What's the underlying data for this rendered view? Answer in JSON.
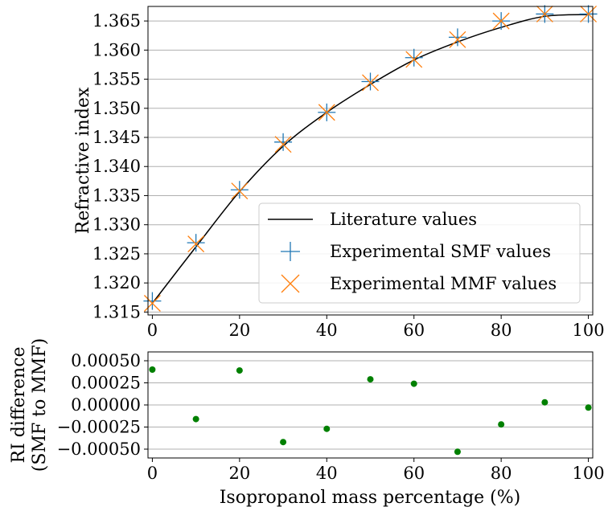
{
  "chart_data": [
    {
      "type": "line",
      "ylabel": "Refractive index",
      "xlim": [
        -1,
        101
      ],
      "ylim": [
        1.3145,
        1.3675
      ],
      "xticks": [
        "0",
        "20",
        "40",
        "60",
        "80",
        "100"
      ],
      "yticks": [
        "1.315",
        "1.320",
        "1.325",
        "1.330",
        "1.335",
        "1.340",
        "1.345",
        "1.350",
        "1.355",
        "1.360",
        "1.365"
      ],
      "grid": "horizontal",
      "legend_position": "lower right",
      "series": [
        {
          "name": "Literature values",
          "style": "line",
          "color": "#000000",
          "x": [
            0,
            10,
            20,
            30,
            40,
            50,
            60,
            70,
            80,
            90,
            100
          ],
          "y": [
            1.3165,
            1.3262,
            1.3357,
            1.3435,
            1.3493,
            1.3541,
            1.3583,
            1.3614,
            1.3639,
            1.3658,
            1.3661
          ]
        },
        {
          "name": "Experimental SMF values",
          "style": "plus",
          "color": "#1f77b4",
          "x": [
            0,
            10,
            20,
            30,
            40,
            50,
            60,
            70,
            80,
            90,
            100
          ],
          "y": [
            1.3169,
            1.3269,
            1.336,
            1.3442,
            1.3493,
            1.3546,
            1.3587,
            1.3622,
            1.365,
            1.3662,
            1.3662
          ]
        },
        {
          "name": "Experimental MMF values",
          "style": "cross",
          "color": "#ff7f0e",
          "x": [
            0,
            10,
            20,
            30,
            40,
            50,
            60,
            70,
            80,
            90,
            100
          ],
          "y": [
            1.3165,
            1.3267,
            1.3358,
            1.3438,
            1.3493,
            1.3544,
            1.3584,
            1.3618,
            1.365,
            1.3662,
            1.3662
          ]
        }
      ]
    },
    {
      "type": "scatter",
      "xlabel": "Isopropanol mass percentage (%)",
      "ylabel": "RI difference\n(SMF to MMF)",
      "xlim": [
        -1,
        101
      ],
      "ylim": [
        -0.0006,
        0.0006
      ],
      "xticks": [
        "0",
        "20",
        "40",
        "60",
        "80",
        "100"
      ],
      "yticks": [
        "−0.00050",
        "−0.00025",
        "0.00000",
        "0.00025",
        "0.00050"
      ],
      "grid": "horizontal",
      "series": [
        {
          "color": "#008000",
          "x": [
            0,
            10,
            20,
            30,
            40,
            50,
            60,
            70,
            80,
            90,
            100
          ],
          "y": [
            0.0004,
            -0.00016,
            0.00039,
            -0.00042,
            -0.00027,
            0.00029,
            0.00024,
            -0.00053,
            -0.00022,
            3e-05,
            -3e-05
          ]
        }
      ]
    }
  ]
}
